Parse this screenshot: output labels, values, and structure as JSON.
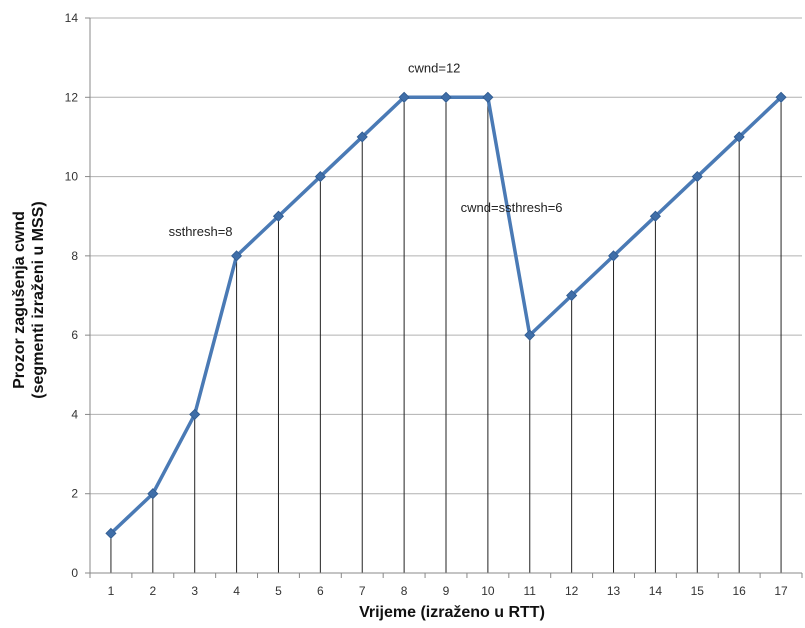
{
  "chart_data": {
    "type": "line",
    "x": [
      1,
      2,
      3,
      4,
      5,
      6,
      7,
      8,
      9,
      10,
      11,
      12,
      13,
      14,
      15,
      16,
      17
    ],
    "series": [
      {
        "values": [
          1,
          2,
          4,
          8,
          9,
          10,
          11,
          12,
          12,
          12,
          6,
          7,
          8,
          9,
          10,
          11,
          12
        ]
      }
    ],
    "xlabel": "Vrijeme (izraženo u RTT)",
    "ylabel_line1": "Prozor zagušenja cwnd",
    "ylabel_line2": "(segmenti izraženi u MSS)",
    "xlim": [
      1,
      17
    ],
    "ylim": [
      0,
      14
    ],
    "yticks": [
      0,
      2,
      4,
      6,
      8,
      10,
      12,
      14
    ],
    "grid": "horizontal",
    "drop_lines": true,
    "annotations": [
      {
        "text": "ssthresh=8",
        "at_x": 4,
        "at_y": 8
      },
      {
        "text": "cwnd=12",
        "at_x": 9,
        "at_y": 12
      },
      {
        "text": "cwnd=ssthresh=6",
        "at_x": 12,
        "at_y": 9
      }
    ],
    "colors": {
      "line": "#4a7ab5",
      "marker": "#3f6ea8",
      "grid": "#b0b0b0",
      "drop_line": "#222222"
    }
  }
}
